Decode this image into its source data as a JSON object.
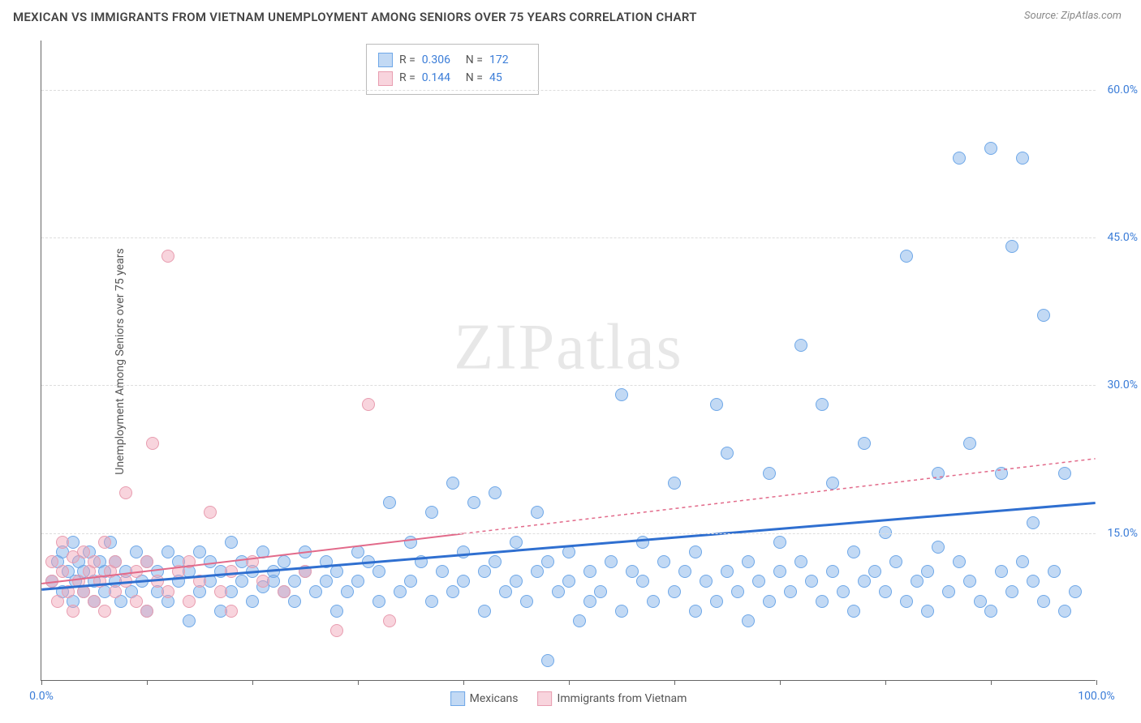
{
  "title": "MEXICAN VS IMMIGRANTS FROM VIETNAM UNEMPLOYMENT AMONG SENIORS OVER 75 YEARS CORRELATION CHART",
  "source": "Source: ZipAtlas.com",
  "y_axis_label": "Unemployment Among Seniors over 75 years",
  "watermark": "ZIPatlas",
  "chart": {
    "type": "scatter",
    "xlim": [
      0,
      100
    ],
    "ylim": [
      0,
      65
    ],
    "x_ticks": [
      0,
      10,
      20,
      30,
      40,
      50,
      60,
      70,
      80,
      90,
      100
    ],
    "x_tick_labels": {
      "0": "0.0%",
      "100": "100.0%"
    },
    "y_ticks": [
      15,
      30,
      45,
      60
    ],
    "y_tick_labels": [
      "15.0%",
      "30.0%",
      "45.0%",
      "60.0%"
    ],
    "grid_color": "#dddddd",
    "background_color": "#ffffff",
    "axis_color": "#666666"
  },
  "series": [
    {
      "name": "Mexicans",
      "color_fill": "rgba(120,170,230,0.45)",
      "color_stroke": "#6fa8e8",
      "trend_color": "#2f6fd0",
      "trend_width": 3,
      "trend_dash": "none",
      "R": "0.306",
      "N": "172",
      "trend": {
        "x1": 0,
        "y1": 9.2,
        "x2": 100,
        "y2": 18.0,
        "extent": 100
      },
      "points": [
        [
          1,
          10
        ],
        [
          1.5,
          12
        ],
        [
          2,
          9
        ],
        [
          2,
          13
        ],
        [
          2.5,
          11
        ],
        [
          3,
          8
        ],
        [
          3,
          14
        ],
        [
          3.2,
          10
        ],
        [
          3.5,
          12
        ],
        [
          4,
          9
        ],
        [
          4,
          11
        ],
        [
          4.5,
          13
        ],
        [
          5,
          10
        ],
        [
          5,
          8
        ],
        [
          5.5,
          12
        ],
        [
          6,
          11
        ],
        [
          6,
          9
        ],
        [
          6.5,
          14
        ],
        [
          7,
          10
        ],
        [
          7,
          12
        ],
        [
          7.5,
          8
        ],
        [
          8,
          11
        ],
        [
          8.5,
          9
        ],
        [
          9,
          13
        ],
        [
          9.5,
          10
        ],
        [
          10,
          12
        ],
        [
          10,
          7
        ],
        [
          11,
          11
        ],
        [
          11,
          9
        ],
        [
          12,
          8
        ],
        [
          12,
          13
        ],
        [
          13,
          10
        ],
        [
          13,
          12
        ],
        [
          14,
          11
        ],
        [
          14,
          6
        ],
        [
          15,
          9
        ],
        [
          15,
          13
        ],
        [
          16,
          10
        ],
        [
          16,
          12
        ],
        [
          17,
          11
        ],
        [
          17,
          7
        ],
        [
          18,
          9
        ],
        [
          18,
          14
        ],
        [
          19,
          10
        ],
        [
          19,
          12
        ],
        [
          20,
          11
        ],
        [
          20,
          8
        ],
        [
          21,
          9.5
        ],
        [
          21,
          13
        ],
        [
          22,
          10
        ],
        [
          22,
          11
        ],
        [
          23,
          9
        ],
        [
          23,
          12
        ],
        [
          24,
          10
        ],
        [
          24,
          8
        ],
        [
          25,
          11
        ],
        [
          25,
          13
        ],
        [
          26,
          9
        ],
        [
          27,
          10
        ],
        [
          27,
          12
        ],
        [
          28,
          11
        ],
        [
          28,
          7
        ],
        [
          29,
          9
        ],
        [
          30,
          13
        ],
        [
          30,
          10
        ],
        [
          31,
          12
        ],
        [
          32,
          8
        ],
        [
          32,
          11
        ],
        [
          33,
          18
        ],
        [
          34,
          9
        ],
        [
          35,
          10
        ],
        [
          35,
          14
        ],
        [
          36,
          12
        ],
        [
          37,
          17
        ],
        [
          37,
          8
        ],
        [
          38,
          11
        ],
        [
          39,
          9
        ],
        [
          39,
          20
        ],
        [
          40,
          10
        ],
        [
          40,
          13
        ],
        [
          41,
          18
        ],
        [
          42,
          11
        ],
        [
          42,
          7
        ],
        [
          43,
          12
        ],
        [
          43,
          19
        ],
        [
          44,
          9
        ],
        [
          45,
          10
        ],
        [
          45,
          14
        ],
        [
          46,
          8
        ],
        [
          47,
          11
        ],
        [
          47,
          17
        ],
        [
          48,
          12
        ],
        [
          48,
          2
        ],
        [
          49,
          9
        ],
        [
          50,
          10
        ],
        [
          50,
          13
        ],
        [
          51,
          6
        ],
        [
          52,
          11
        ],
        [
          52,
          8
        ],
        [
          53,
          9
        ],
        [
          54,
          12
        ],
        [
          55,
          29
        ],
        [
          55,
          7
        ],
        [
          56,
          11
        ],
        [
          57,
          10
        ],
        [
          57,
          14
        ],
        [
          58,
          8
        ],
        [
          59,
          12
        ],
        [
          60,
          9
        ],
        [
          60,
          20
        ],
        [
          61,
          11
        ],
        [
          62,
          7
        ],
        [
          62,
          13
        ],
        [
          63,
          10
        ],
        [
          64,
          28
        ],
        [
          64,
          8
        ],
        [
          65,
          11
        ],
        [
          65,
          23
        ],
        [
          66,
          9
        ],
        [
          67,
          12
        ],
        [
          67,
          6
        ],
        [
          68,
          10
        ],
        [
          69,
          21
        ],
        [
          69,
          8
        ],
        [
          70,
          11
        ],
        [
          70,
          14
        ],
        [
          71,
          9
        ],
        [
          72,
          34
        ],
        [
          72,
          12
        ],
        [
          73,
          10
        ],
        [
          74,
          28
        ],
        [
          74,
          8
        ],
        [
          75,
          11
        ],
        [
          75,
          20
        ],
        [
          76,
          9
        ],
        [
          77,
          13
        ],
        [
          77,
          7
        ],
        [
          78,
          10
        ],
        [
          78,
          24
        ],
        [
          79,
          11
        ],
        [
          80,
          9
        ],
        [
          80,
          15
        ],
        [
          81,
          12
        ],
        [
          82,
          8
        ],
        [
          82,
          43
        ],
        [
          83,
          10
        ],
        [
          84,
          11
        ],
        [
          84,
          7
        ],
        [
          85,
          13.5
        ],
        [
          85,
          21
        ],
        [
          86,
          9
        ],
        [
          87,
          53
        ],
        [
          87,
          12
        ],
        [
          88,
          10
        ],
        [
          88,
          24
        ],
        [
          89,
          8
        ],
        [
          90,
          54
        ],
        [
          90,
          7
        ],
        [
          91,
          11
        ],
        [
          91,
          21
        ],
        [
          92,
          44
        ],
        [
          92,
          9
        ],
        [
          93,
          12
        ],
        [
          93,
          53
        ],
        [
          94,
          10
        ],
        [
          94,
          16
        ],
        [
          95,
          8
        ],
        [
          95,
          37
        ],
        [
          96,
          11
        ],
        [
          97,
          21
        ],
        [
          97,
          7
        ],
        [
          98,
          9
        ]
      ]
    },
    {
      "name": "Immigrants from Vietnam",
      "color_fill": "rgba(240,160,180,0.45)",
      "color_stroke": "#e89db0",
      "trend_color": "#e26a8a",
      "trend_width": 2,
      "trend_dash": "4,4",
      "R": "0.144",
      "N": "45",
      "trend": {
        "x1": 0,
        "y1": 9.8,
        "x2": 100,
        "y2": 22.5,
        "extent": 40
      },
      "points": [
        [
          1,
          10
        ],
        [
          1,
          12
        ],
        [
          1.5,
          8
        ],
        [
          2,
          11
        ],
        [
          2,
          14
        ],
        [
          2.5,
          9
        ],
        [
          3,
          12.5
        ],
        [
          3,
          7
        ],
        [
          3.5,
          10
        ],
        [
          4,
          13
        ],
        [
          4,
          9
        ],
        [
          4.5,
          11
        ],
        [
          5,
          8
        ],
        [
          5,
          12
        ],
        [
          5.5,
          10
        ],
        [
          6,
          14
        ],
        [
          6,
          7
        ],
        [
          6.5,
          11
        ],
        [
          7,
          9
        ],
        [
          7,
          12
        ],
        [
          8,
          10
        ],
        [
          8,
          19
        ],
        [
          9,
          11
        ],
        [
          9,
          8
        ],
        [
          10,
          12
        ],
        [
          10,
          7
        ],
        [
          10.5,
          24
        ],
        [
          11,
          10
        ],
        [
          12,
          9
        ],
        [
          12,
          43
        ],
        [
          13,
          11
        ],
        [
          14,
          8
        ],
        [
          14,
          12
        ],
        [
          15,
          10
        ],
        [
          16,
          17
        ],
        [
          17,
          9
        ],
        [
          18,
          11
        ],
        [
          18,
          7
        ],
        [
          20,
          12
        ],
        [
          21,
          10
        ],
        [
          23,
          9
        ],
        [
          25,
          11
        ],
        [
          28,
          5
        ],
        [
          31,
          28
        ],
        [
          33,
          6
        ]
      ]
    }
  ],
  "stats_legend": {
    "R_label": "R =",
    "N_label": "N ="
  },
  "bottom_legend": {
    "series1": "Mexicans",
    "series2": "Immigrants from Vietnam"
  },
  "marker": {
    "radius": 8,
    "stroke_width": 1.5
  }
}
